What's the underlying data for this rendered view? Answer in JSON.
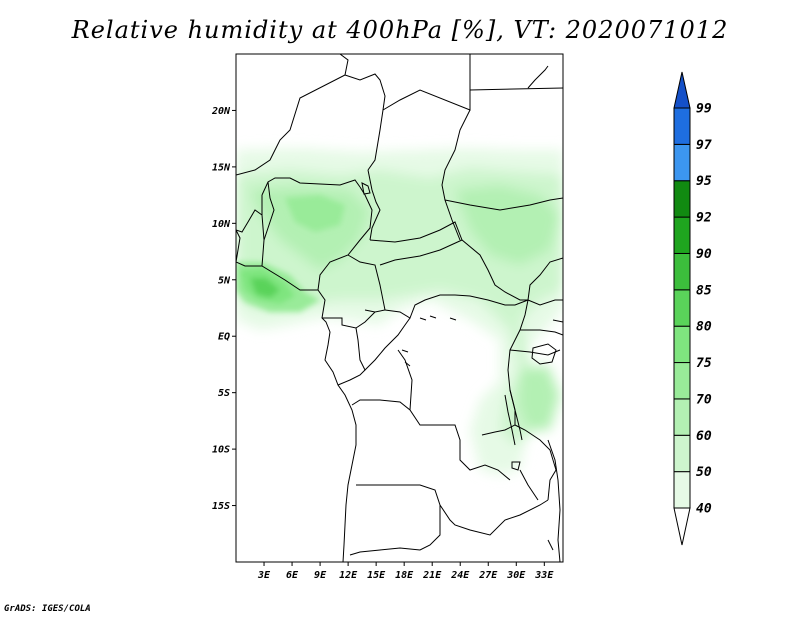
{
  "title": "Relative humidity at 400hPa [%], VT: 2020071012",
  "credit": "GrADS: IGES/COLA",
  "map": {
    "lon_range": [
      0,
      35
    ],
    "lat_range": [
      -20,
      25
    ],
    "lat_ticks": [
      {
        "value": 20,
        "label": "20N"
      },
      {
        "value": 15,
        "label": "15N"
      },
      {
        "value": 10,
        "label": "10N"
      },
      {
        "value": 5,
        "label": "5N"
      },
      {
        "value": 0,
        "label": "EQ"
      },
      {
        "value": -5,
        "label": "5S"
      },
      {
        "value": -10,
        "label": "10S"
      },
      {
        "value": -15,
        "label": "15S"
      }
    ],
    "lon_ticks": [
      {
        "value": 3,
        "label": "3E"
      },
      {
        "value": 6,
        "label": "6E"
      },
      {
        "value": 9,
        "label": "9E"
      },
      {
        "value": 12,
        "label": "12E"
      },
      {
        "value": 15,
        "label": "15E"
      },
      {
        "value": 18,
        "label": "18E"
      },
      {
        "value": 21,
        "label": "21E"
      },
      {
        "value": 24,
        "label": "24E"
      },
      {
        "value": 27,
        "label": "27E"
      },
      {
        "value": 30,
        "label": "30E"
      },
      {
        "value": 33,
        "label": "33E"
      }
    ]
  },
  "colorbar": {
    "levels": [
      "40",
      "50",
      "60",
      "70",
      "75",
      "80",
      "85",
      "90",
      "92",
      "95",
      "97",
      "99"
    ],
    "colors": [
      "#ffffff",
      "#e6fae6",
      "#cdf5cd",
      "#b3f0b3",
      "#99eb99",
      "#7fe57f",
      "#5ad35a",
      "#3cbe3c",
      "#1fa51f",
      "#118a11",
      "#3c96f0",
      "#1e6ee0",
      "#1450c8"
    ]
  }
}
